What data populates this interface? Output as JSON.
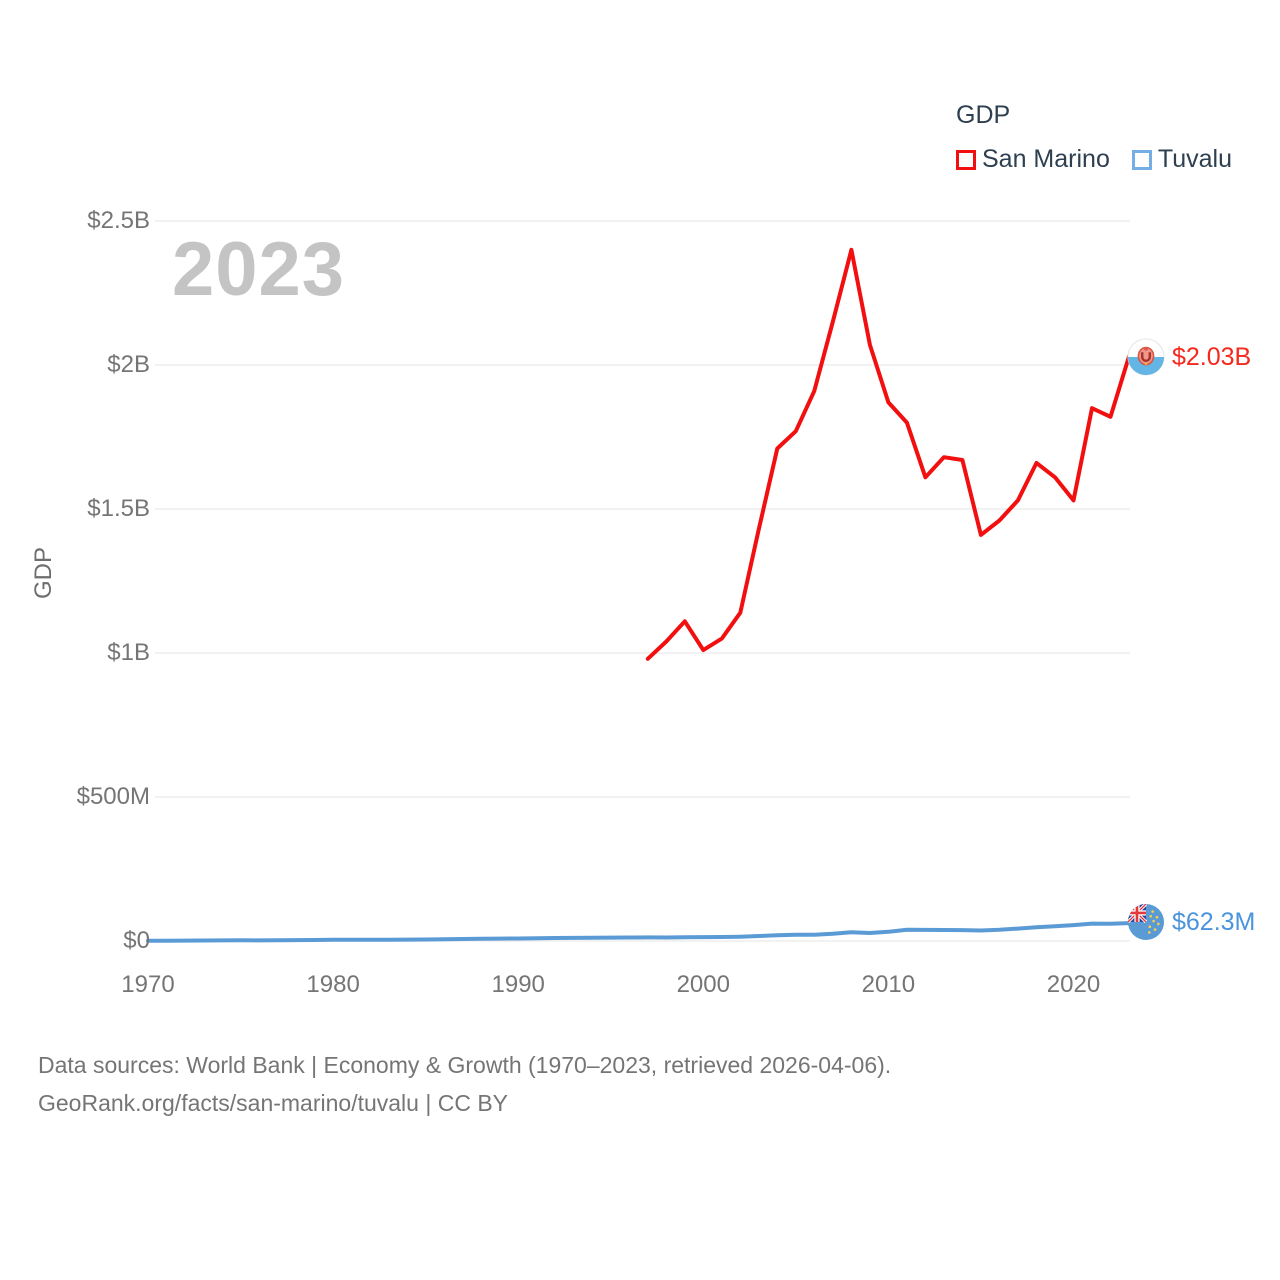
{
  "legend": {
    "title": "GDP",
    "items": [
      {
        "label": "San Marino",
        "swatch_color": "#f20f0f"
      },
      {
        "label": "Tuvalu",
        "swatch_color": "#74aee3"
      }
    ]
  },
  "colors": {
    "san_marino_line": "#f20f0f",
    "san_marino_label": "#f5281e",
    "tuvalu_line": "#5b9bd5",
    "tuvalu_label": "#4a94dd",
    "axis_text": "#757575",
    "legend_text": "#2e3f50",
    "watermark": "#c4c4c4",
    "gridline": "#ededed"
  },
  "footer": {
    "line1": "Data sources: World Bank | Economy & Growth (1970–2023, retrieved 2026-04-06).",
    "line2": "GeoRank.org/facts/san-marino/tuvalu | CC BY"
  },
  "chart_data": {
    "type": "line",
    "title": "GDP",
    "xlabel": "",
    "ylabel": "GDP",
    "watermark": "2023",
    "grid": "horizontal",
    "legend_position": "top-right",
    "xlim": [
      1970,
      2023
    ],
    "ylim_billions": [
      0,
      2.5
    ],
    "x_axis": {
      "ticks": [
        1970,
        1980,
        1990,
        2000,
        2010,
        2020
      ]
    },
    "y_axis": {
      "ticks": [
        {
          "label": "$2.5B",
          "value": 2.5
        },
        {
          "label": "$2B",
          "value": 2.0
        },
        {
          "label": "$1.5B",
          "value": 1.5
        },
        {
          "label": "$1B",
          "value": 1.0
        },
        {
          "label": "$500M",
          "value": 0.5
        },
        {
          "label": "$0",
          "value": 0.0
        }
      ]
    },
    "series": [
      {
        "name": "San Marino",
        "color": "#f20f0f",
        "unit": "billions USD",
        "start_year": 1997,
        "end_year": 2023,
        "values": [
          0.98,
          1.04,
          1.11,
          1.01,
          1.05,
          1.14,
          1.43,
          1.71,
          1.77,
          1.91,
          2.15,
          2.4,
          2.07,
          1.87,
          1.8,
          1.61,
          1.68,
          1.67,
          1.41,
          1.46,
          1.53,
          1.66,
          1.61,
          1.53,
          1.85,
          1.82,
          2.03
        ]
      },
      {
        "name": "Tuvalu",
        "color": "#5b9bd5",
        "unit": "millions USD",
        "start_year": 1970,
        "end_year": 2023,
        "values": [
          1.1,
          1.2,
          1.3,
          1.7,
          2.0,
          2.4,
          2.2,
          2.6,
          3.0,
          3.6,
          4.1,
          4.3,
          4.4,
          4.6,
          4.8,
          5.1,
          5.8,
          7.0,
          7.9,
          8.5,
          8.8,
          9.7,
          10.3,
          10.6,
          11.2,
          11.7,
          12.1,
          12.5,
          12.2,
          13.1,
          13.7,
          13.9,
          15.0,
          17.4,
          19.9,
          21.5,
          22.0,
          25.4,
          30.6,
          27.9,
          31.8,
          38.8,
          38.7,
          38.3,
          37.8,
          36.3,
          38.9,
          43.2,
          47.5,
          51.5,
          55.2,
          60.4,
          59.6,
          62.3
        ]
      }
    ],
    "end_labels": [
      {
        "series": "San Marino",
        "text": "$2.03B",
        "color": "#f5281e"
      },
      {
        "series": "Tuvalu",
        "text": "$62.3M",
        "color": "#4a94dd"
      }
    ]
  }
}
